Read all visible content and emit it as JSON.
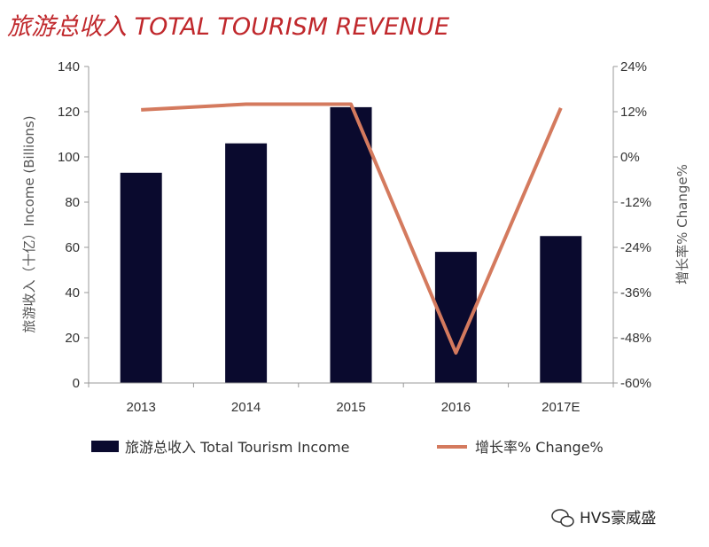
{
  "chart_data": {
    "type": "bar",
    "title": "旅游总收入 TOTAL TOURISM REVENUE",
    "categories": [
      "2013",
      "2014",
      "2015",
      "2016",
      "2017E"
    ],
    "series": [
      {
        "name": "旅游总收入 Total Tourism Income",
        "type": "bar",
        "axis": "left",
        "values": [
          93,
          106,
          122,
          58,
          65
        ]
      },
      {
        "name": "增长率% Change%",
        "type": "line",
        "axis": "right",
        "values": [
          12.5,
          14,
          14,
          -52,
          13
        ]
      }
    ],
    "ylabel": "旅游收入（十亿）Income (Billions)",
    "ylim": [
      0,
      140
    ],
    "yticks": [
      "0",
      "20",
      "40",
      "60",
      "80",
      "100",
      "120",
      "140"
    ],
    "y2label": "增长率% Change%",
    "y2lim": [
      -60,
      24
    ],
    "y2ticks": [
      "24%",
      "12%",
      "0%",
      "-12%",
      "-24%",
      "-36%",
      "-48%",
      "-60%"
    ],
    "grid": false,
    "legend": "bottom",
    "colors": {
      "bars": "#0a0a2e",
      "line": "#d47a5e",
      "title": "#c0282c"
    }
  },
  "watermark": "HVS豪威盛"
}
